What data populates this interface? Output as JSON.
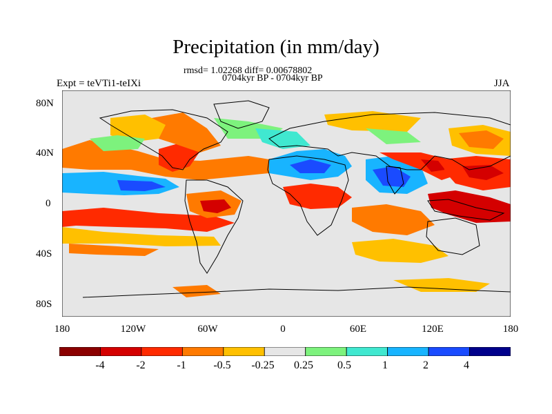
{
  "title": "Precipitation (in mm/day)",
  "stats": "rmsd= 1.02268 diff= 0.00678802",
  "period": "0704kyr BP - 0704kyr BP",
  "experiment": "Expt = teVTi1-teIXi",
  "season": "JJA",
  "lat_labels": [
    "80N",
    "40N",
    "0",
    "40S",
    "80S"
  ],
  "lon_labels": [
    "180",
    "120W",
    "60W",
    "0",
    "60E",
    "120E",
    "180"
  ],
  "colorbar": {
    "labels": [
      "-4",
      "-2",
      "-1",
      "-0.5",
      "-0.25",
      "0.25",
      "0.5",
      "1",
      "2",
      "4"
    ],
    "colors": [
      "#8b0000",
      "#d40000",
      "#ff2a00",
      "#ff7a00",
      "#ffc000",
      "#e6e6e6",
      "#7df27d",
      "#40e8d0",
      "#18b4ff",
      "#1a4bff",
      "#00008b"
    ]
  },
  "map_colors": {
    "background": "#e6e6e6",
    "coast": "#000000"
  }
}
